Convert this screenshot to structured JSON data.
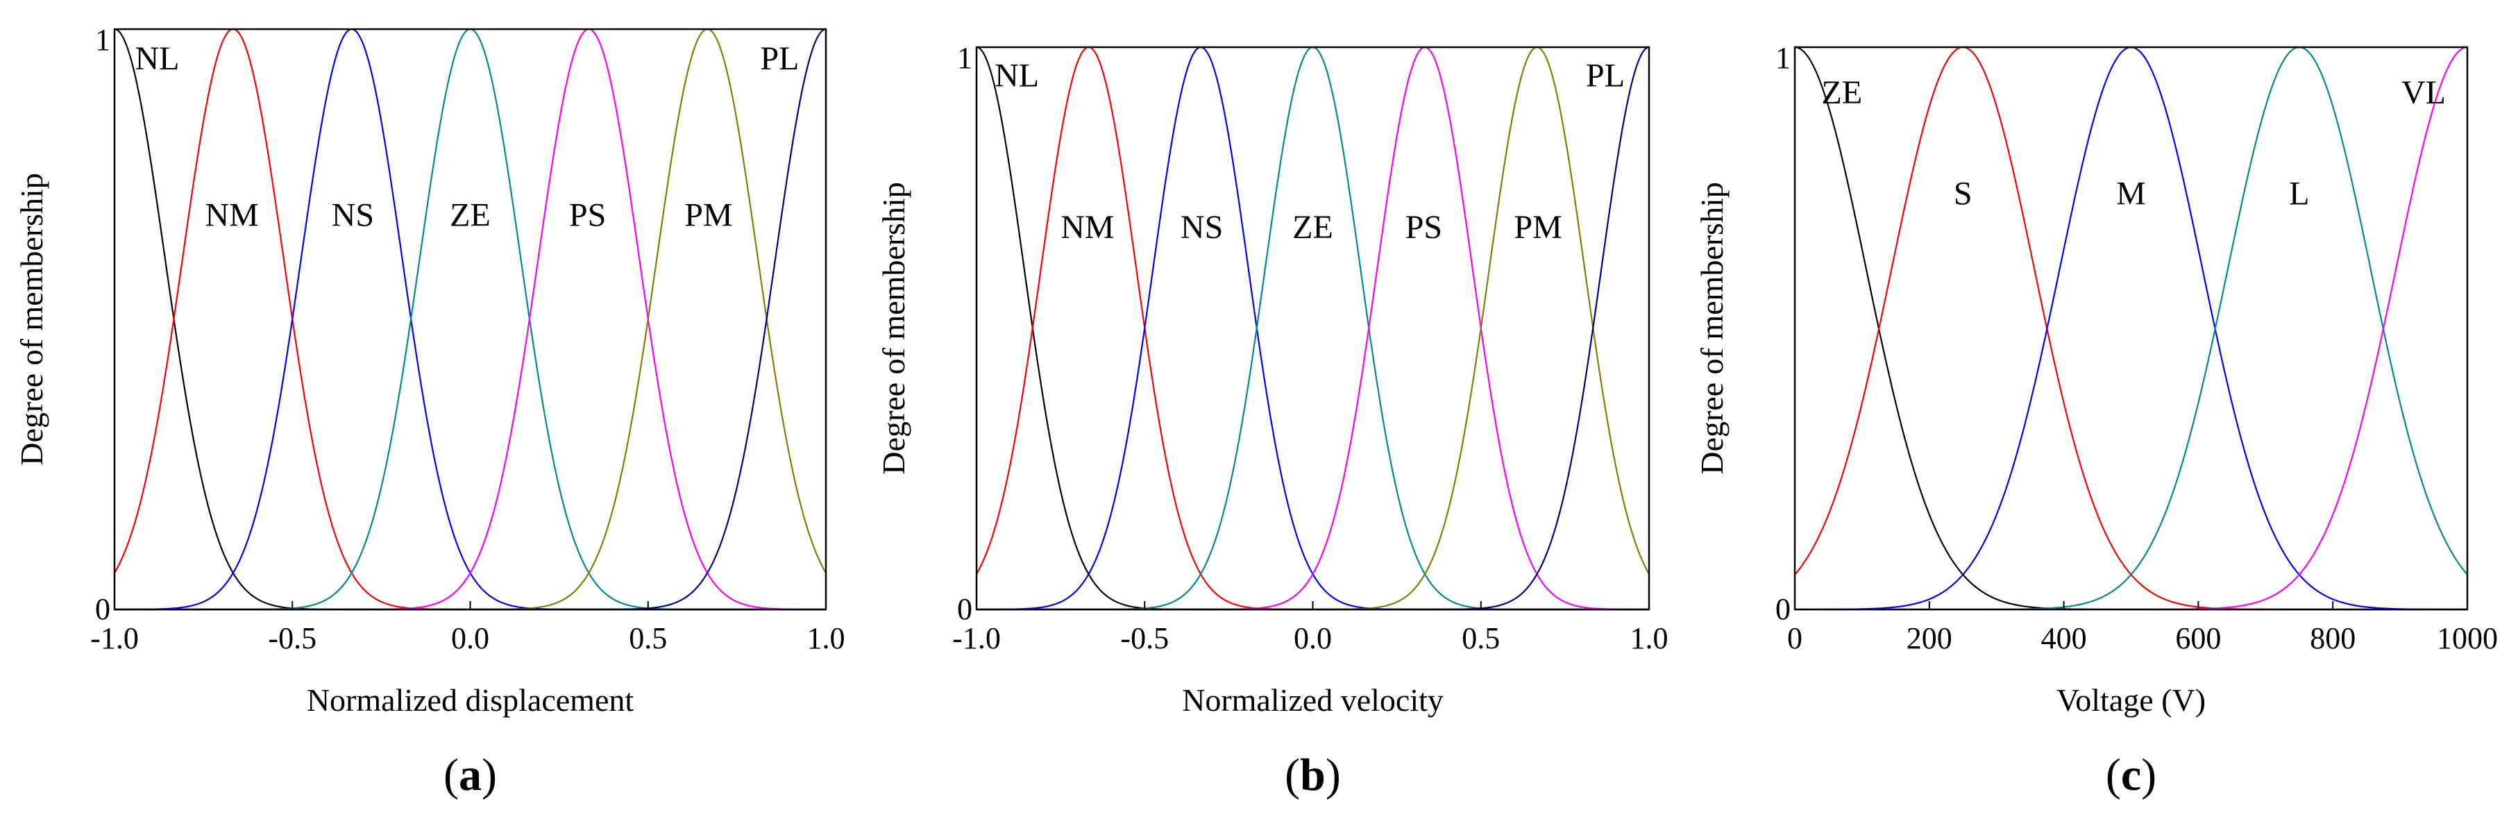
{
  "chart_data": [
    {
      "type": "line",
      "panel_label": "a",
      "xlabel": "Normalized displacement",
      "ylabel": "Degree of membership",
      "xlim": [
        -1.0,
        1.0
      ],
      "ylim": [
        0,
        1
      ],
      "xticks": [
        -1.0,
        -0.5,
        0.0,
        0.5,
        1.0
      ],
      "xtick_labels": [
        "-1.0",
        "-0.5",
        "0.0",
        "0.5",
        "1.0"
      ],
      "ytick_labels": [
        "0",
        "1"
      ],
      "membership": "gaussian",
      "sigma": 0.1417,
      "series": [
        {
          "name": "NL",
          "center": -1.0,
          "color": "#000000",
          "label_x": -0.88,
          "label_y": 0.95
        },
        {
          "name": "NM",
          "center": -0.6667,
          "color": "#ff0000",
          "label_x": -0.67,
          "label_y": 0.68
        },
        {
          "name": "NS",
          "center": -0.3333,
          "color": "#0000ff",
          "label_x": -0.33,
          "label_y": 0.68
        },
        {
          "name": "ZE",
          "center": 0.0,
          "color": "#008b8b",
          "label_x": 0.0,
          "label_y": 0.68
        },
        {
          "name": "PS",
          "center": 0.3333,
          "color": "#ff00ff",
          "label_x": 0.33,
          "label_y": 0.68
        },
        {
          "name": "PM",
          "center": 0.6667,
          "color": "#808000",
          "label_x": 0.67,
          "label_y": 0.68
        },
        {
          "name": "PL",
          "center": 1.0,
          "color": "#00008b",
          "label_x": 0.87,
          "label_y": 0.95
        }
      ]
    },
    {
      "type": "line",
      "panel_label": "b",
      "xlabel": "Normalized velocity",
      "ylabel": "Degree of membership",
      "xlim": [
        -1.0,
        1.0
      ],
      "ylim": [
        0,
        1
      ],
      "xticks": [
        -1.0,
        -0.5,
        0.0,
        0.5,
        1.0
      ],
      "xtick_labels": [
        "-1.0",
        "-0.5",
        "0.0",
        "0.5",
        "1.0"
      ],
      "ytick_labels": [
        "0",
        "1"
      ],
      "membership": "gaussian",
      "sigma": 0.1417,
      "series": [
        {
          "name": "NL",
          "center": -1.0,
          "color": "#000000",
          "label_x": -0.88,
          "label_y": 0.95
        },
        {
          "name": "NM",
          "center": -0.6667,
          "color": "#ff0000",
          "label_x": -0.67,
          "label_y": 0.68
        },
        {
          "name": "NS",
          "center": -0.3333,
          "color": "#0000ff",
          "label_x": -0.33,
          "label_y": 0.68
        },
        {
          "name": "ZE",
          "center": 0.0,
          "color": "#008b8b",
          "label_x": 0.0,
          "label_y": 0.68
        },
        {
          "name": "PS",
          "center": 0.3333,
          "color": "#ff00ff",
          "label_x": 0.33,
          "label_y": 0.68
        },
        {
          "name": "PM",
          "center": 0.6667,
          "color": "#808000",
          "label_x": 0.67,
          "label_y": 0.68
        },
        {
          "name": "PL",
          "center": 1.0,
          "color": "#00008b",
          "label_x": 0.87,
          "label_y": 0.95
        }
      ]
    },
    {
      "type": "line",
      "panel_label": "c",
      "xlabel": "Voltage (V)",
      "ylabel": "Degree of membership",
      "xlim": [
        0,
        1000
      ],
      "ylim": [
        0,
        1
      ],
      "xticks": [
        0,
        200,
        400,
        600,
        800,
        1000
      ],
      "xtick_labels": [
        "0",
        "200",
        "400",
        "600",
        "800",
        "1000"
      ],
      "ytick_labels": [
        "0",
        "1"
      ],
      "membership": "gaussian",
      "sigma": 106,
      "series": [
        {
          "name": "ZE",
          "center": 0,
          "color": "#000000",
          "label_x": 70,
          "label_y": 0.92
        },
        {
          "name": "S",
          "center": 250,
          "color": "#ff0000",
          "label_x": 250,
          "label_y": 0.74
        },
        {
          "name": "M",
          "center": 500,
          "color": "#0000ff",
          "label_x": 500,
          "label_y": 0.74
        },
        {
          "name": "L",
          "center": 750,
          "color": "#008b8b",
          "label_x": 750,
          "label_y": 0.74
        },
        {
          "name": "VL",
          "center": 1000,
          "color": "#ff00ff",
          "label_x": 935,
          "label_y": 0.92
        }
      ]
    }
  ]
}
